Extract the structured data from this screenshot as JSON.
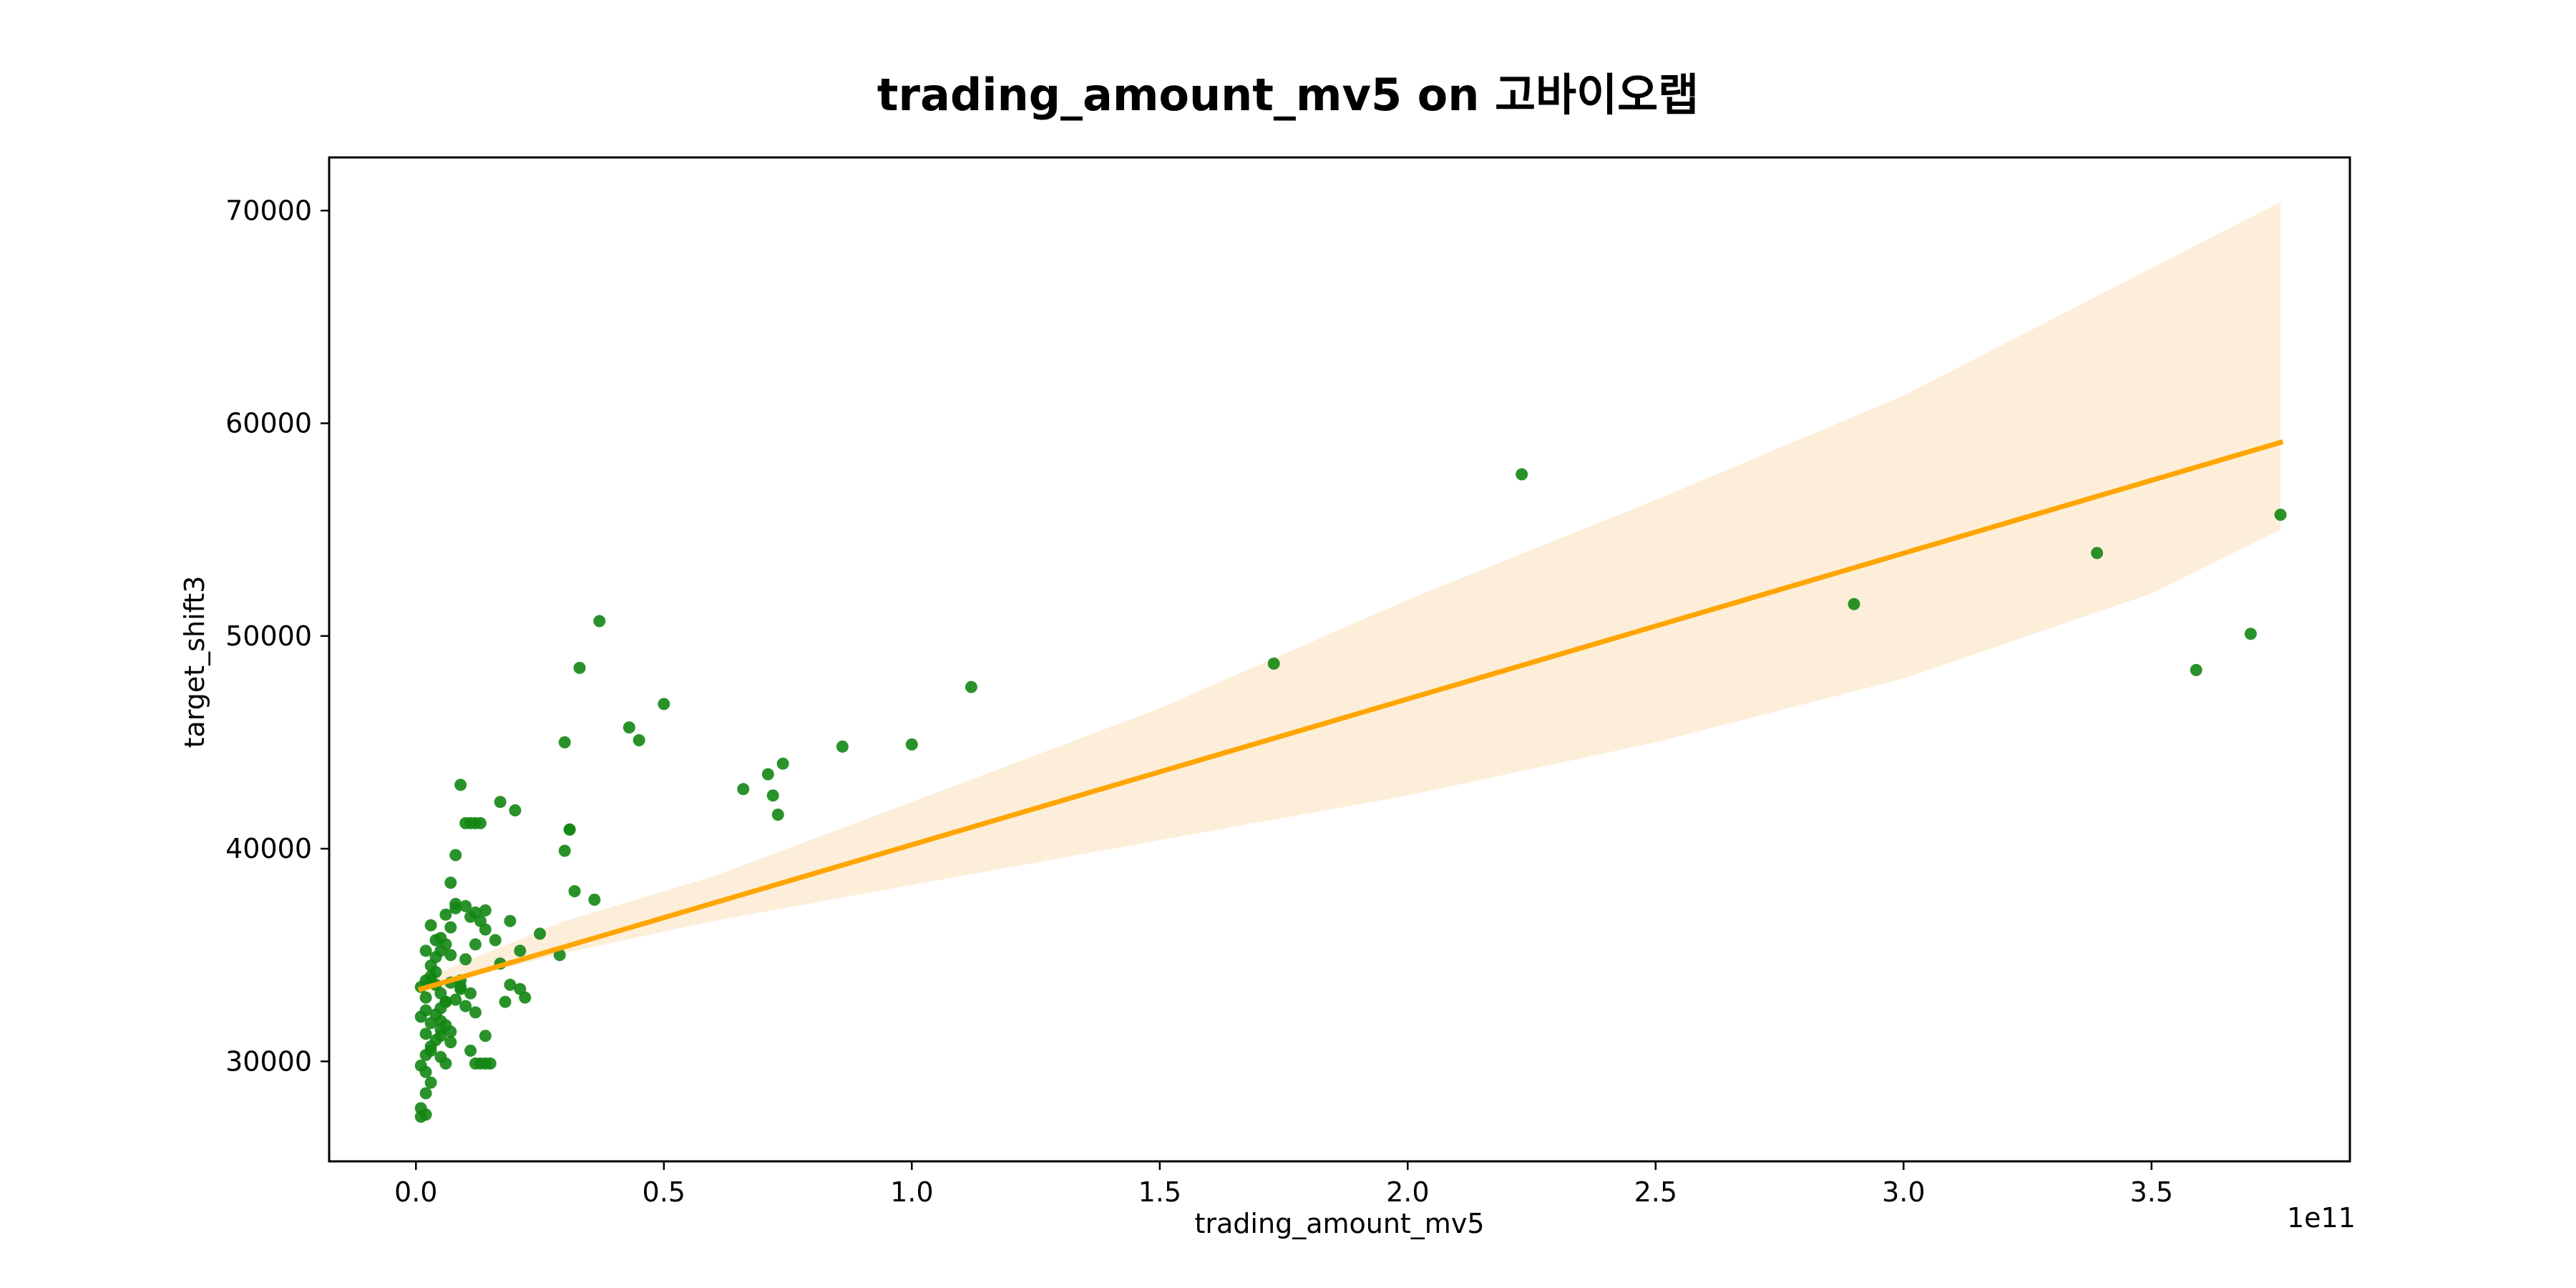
{
  "chart_data": {
    "type": "scatter",
    "title": "trading_amount_mv5 on 고바이오랩",
    "xlabel": "trading_amount_mv5",
    "ylabel": "target_shift3",
    "x_offset_label": "1e11",
    "xlim": [
      -0.175,
      3.9
    ],
    "ylim": [
      25300,
      72500
    ],
    "x_ticks": [
      0.0,
      0.5,
      1.0,
      1.5,
      2.0,
      2.5,
      3.0,
      3.5
    ],
    "x_tick_labels": [
      "0.0",
      "0.5",
      "1.0",
      "1.5",
      "2.0",
      "2.5",
      "3.0",
      "3.5"
    ],
    "y_ticks": [
      30000,
      40000,
      50000,
      60000,
      70000
    ],
    "y_tick_labels": [
      "30000",
      "40000",
      "50000",
      "60000",
      "70000"
    ],
    "grid": false,
    "colors": {
      "points": "#138613",
      "line": "#ffa500",
      "band": "#fdeed9"
    },
    "regression_line": {
      "x": [
        0.01,
        3.76
      ],
      "y": [
        33400,
        59100
      ]
    },
    "confidence_band": {
      "x": [
        0.01,
        0.1,
        0.3,
        0.6,
        1.0,
        1.5,
        2.0,
        2.5,
        3.0,
        3.5,
        3.76
      ],
      "lower": [
        33000,
        33900,
        35100,
        36600,
        38300,
        40400,
        42500,
        45000,
        48000,
        52000,
        55000
      ],
      "upper": [
        33800,
        34700,
        36600,
        38700,
        42200,
        46600,
        51700,
        56400,
        61300,
        67300,
        70400
      ]
    },
    "series": [
      {
        "x": [
          0.01,
          0.01,
          0.02,
          0.02,
          0.03,
          0.01,
          0.02,
          0.03,
          0.04,
          0.02,
          0.03,
          0.01,
          0.02,
          0.04,
          0.05,
          0.03,
          0.02,
          0.01,
          0.02,
          0.03,
          0.04,
          0.05,
          0.06,
          0.03,
          0.04,
          0.05,
          0.06,
          0.07,
          0.02,
          0.03,
          0.04,
          0.05,
          0.06,
          0.07,
          0.08,
          0.03,
          0.04,
          0.05,
          0.06,
          0.07,
          0.08,
          0.09,
          0.02,
          0.05,
          0.06,
          0.08,
          0.1,
          0.11,
          0.12,
          0.13,
          0.14,
          0.1,
          0.12,
          0.13,
          0.15,
          0.07,
          0.08,
          0.1,
          0.09,
          0.11,
          0.12,
          0.13,
          0.14,
          0.17,
          0.18,
          0.19,
          0.21,
          0.22,
          0.2,
          0.17,
          0.21,
          0.25,
          0.1,
          0.12,
          0.14,
          0.16,
          0.19,
          0.07,
          0.09,
          0.11,
          0.05,
          0.06,
          0.11,
          0.12,
          0.14,
          0.05,
          0.07,
          0.09,
          0.29,
          0.3,
          0.31,
          0.31,
          0.3,
          0.32,
          0.33,
          0.36,
          0.37,
          0.43,
          0.45,
          0.5,
          0.66,
          0.71,
          0.72,
          0.73,
          0.74,
          0.86,
          1.0,
          1.12,
          1.73,
          2.23,
          2.9,
          3.39,
          3.59,
          3.7,
          3.76
        ],
        "y": [
          27400,
          27800,
          27500,
          28500,
          29000,
          29800,
          30300,
          30500,
          31000,
          31300,
          31800,
          32100,
          32400,
          32200,
          31500,
          30700,
          33000,
          33500,
          33800,
          34000,
          33600,
          33200,
          32800,
          34500,
          34900,
          35200,
          35500,
          35000,
          35200,
          36400,
          35700,
          35800,
          36900,
          36300,
          37200,
          33800,
          34200,
          32500,
          31700,
          30900,
          32900,
          33400,
          29500,
          30200,
          29900,
          37400,
          37300,
          36800,
          37000,
          36600,
          37100,
          32600,
          32300,
          29900,
          29900,
          38400,
          39700,
          41200,
          43000,
          41200,
          41200,
          41200,
          31200,
          34600,
          32800,
          33600,
          33400,
          33000,
          41800,
          42200,
          35200,
          36000,
          34800,
          35500,
          36200,
          35700,
          36600,
          33700,
          33500,
          33200,
          31200,
          32800,
          30500,
          29900,
          29900,
          31900,
          31400,
          33800,
          35000,
          45000,
          40900,
          40900,
          39900,
          38000,
          48500,
          37600,
          50700,
          45700,
          45100,
          46800,
          42800,
          43500,
          42500,
          41600,
          44000,
          44800,
          44900,
          47600,
          48700,
          57600,
          51500,
          53900,
          48400,
          50100,
          55700
        ]
      }
    ]
  }
}
